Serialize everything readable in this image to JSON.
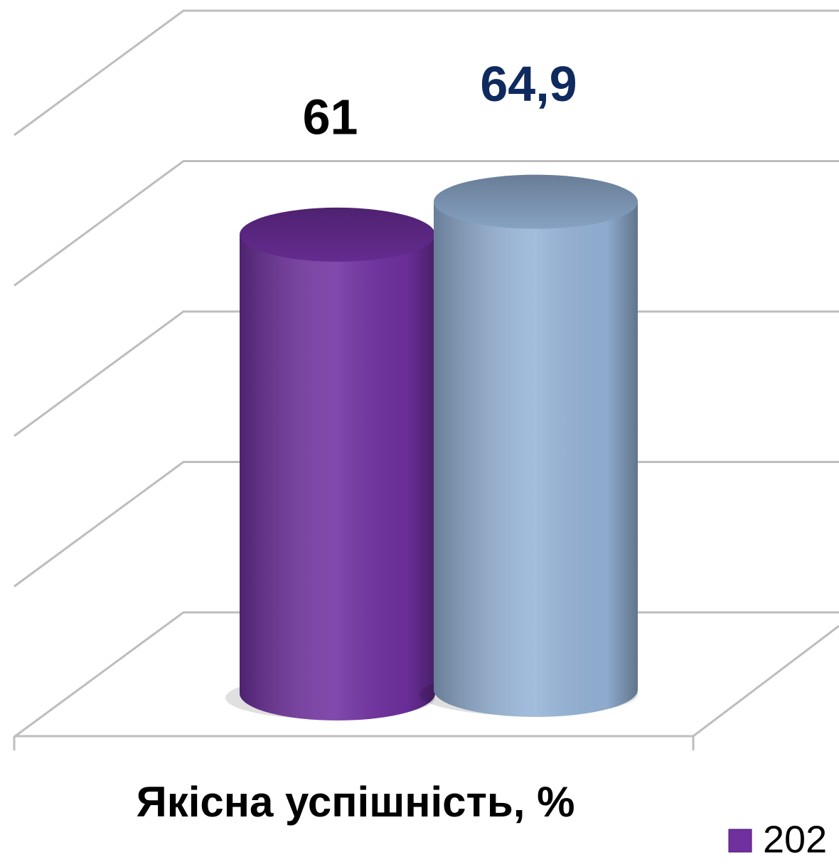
{
  "chart_data": {
    "type": "cylinder_bar",
    "categories": [
      "Якісна успішність, %"
    ],
    "series": [
      {
        "name": "202",
        "color": "#7030a0",
        "label_color": "#000000",
        "values": [
          61
        ],
        "value_labels": [
          "61"
        ]
      },
      {
        "color": "#95b3d7",
        "label_color": "#0f2a5e",
        "values": [
          64.9
        ],
        "value_labels": [
          "64,9"
        ]
      }
    ],
    "ylim": [
      0,
      80
    ],
    "yticks": [
      0,
      20,
      40,
      60,
      80
    ],
    "grid": true,
    "legend": "bottom-right"
  }
}
